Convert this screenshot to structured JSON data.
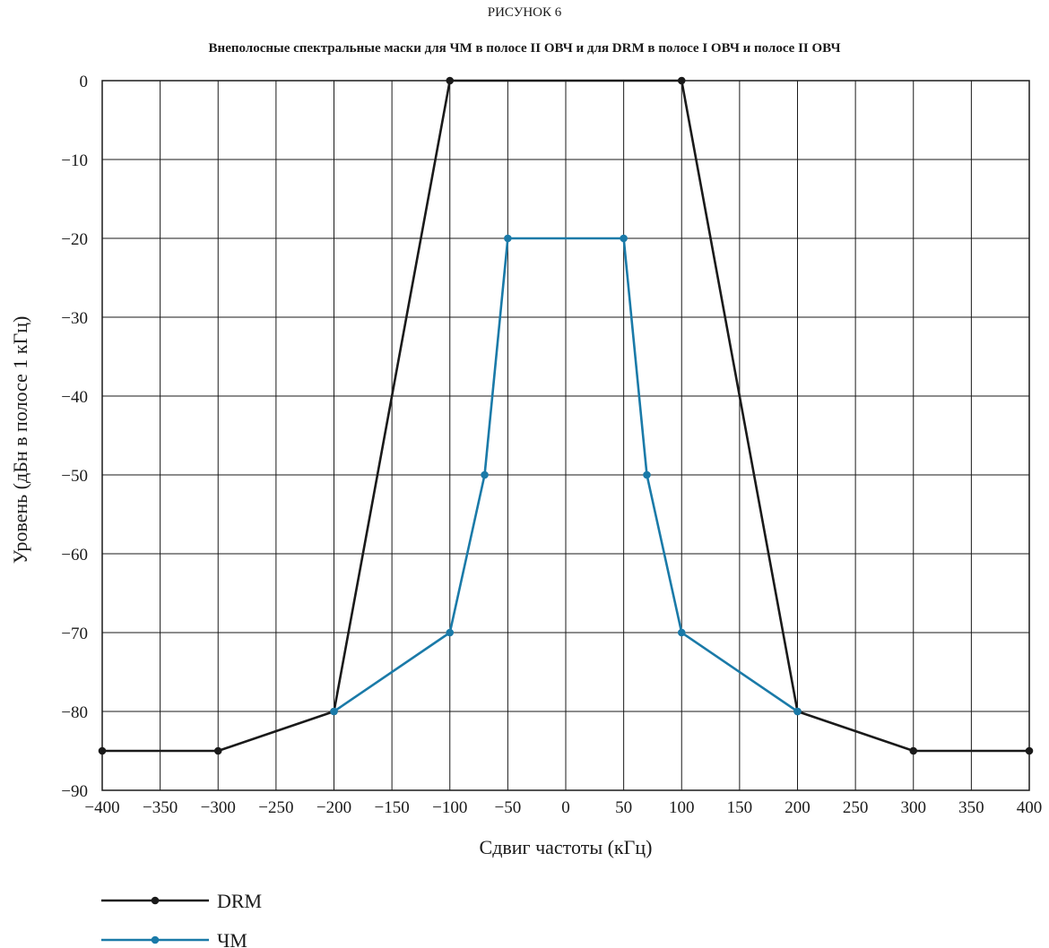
{
  "figure_label": "РИСУНОК 6",
  "chart_data": {
    "type": "line",
    "title": "Внеполосные спектральные маски для ЧМ в полосе II ОВЧ и для DRM в полосе I ОВЧ и полосе II ОВЧ",
    "xlabel": "Сдвиг частоты (кГц)",
    "ylabel": "Уровень (дБн в полосе 1 кГц)",
    "xlim": [
      -400,
      400
    ],
    "ylim": [
      -90,
      0
    ],
    "xticks": [
      -400,
      -350,
      -300,
      -250,
      -200,
      -150,
      -100,
      -50,
      0,
      50,
      100,
      150,
      200,
      250,
      300,
      350,
      400
    ],
    "yticks": [
      0,
      -10,
      -20,
      -30,
      -40,
      -50,
      -60,
      -70,
      -80,
      -90
    ],
    "xtick_labels": [
      "−400",
      "−350",
      "−300",
      "−250",
      "−200",
      "−150",
      "−100",
      "−50",
      "0",
      "50",
      "100",
      "150",
      "200",
      "250",
      "300",
      "350",
      "400"
    ],
    "ytick_labels": [
      "0",
      "−10",
      "−20",
      "−30",
      "−40",
      "−50",
      "−60",
      "−70",
      "−80",
      "−90"
    ],
    "grid": true,
    "legend_position": "bottom-left",
    "series": [
      {
        "name": "DRM",
        "color": "#1a1a1a",
        "points": [
          [
            -400,
            -85
          ],
          [
            -300,
            -85
          ],
          [
            -200,
            -80
          ],
          [
            -100,
            0
          ],
          [
            100,
            0
          ],
          [
            200,
            -80
          ],
          [
            300,
            -85
          ],
          [
            400,
            -85
          ]
        ]
      },
      {
        "name": "ЧМ",
        "color": "#1a7aa8",
        "points": [
          [
            -200,
            -80
          ],
          [
            -100,
            -70
          ],
          [
            -70,
            -50
          ],
          [
            -50,
            -20
          ],
          [
            50,
            -20
          ],
          [
            70,
            -50
          ],
          [
            100,
            -70
          ],
          [
            200,
            -80
          ]
        ]
      }
    ]
  }
}
